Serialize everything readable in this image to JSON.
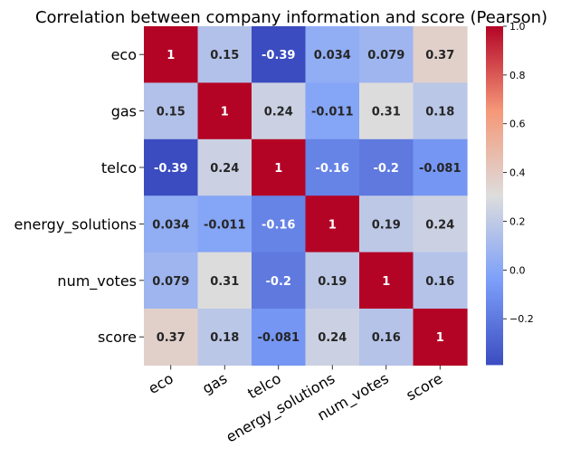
{
  "chart_data": {
    "type": "heatmap",
    "title": "Correlation between company information and score (Pearson)",
    "row_labels": [
      "eco",
      "gas",
      "telco",
      "energy_solutions",
      "num_votes",
      "score"
    ],
    "col_labels": [
      "eco",
      "gas",
      "telco",
      "energy_solutions",
      "num_votes",
      "score"
    ],
    "values": [
      [
        1,
        0.15,
        -0.39,
        0.034,
        0.079,
        0.37
      ],
      [
        0.15,
        1,
        0.24,
        -0.011,
        0.31,
        0.18
      ],
      [
        -0.39,
        0.24,
        1,
        -0.16,
        -0.2,
        -0.081
      ],
      [
        0.034,
        -0.011,
        -0.16,
        1,
        0.19,
        0.24
      ],
      [
        0.079,
        0.31,
        -0.2,
        0.19,
        1,
        0.16
      ],
      [
        0.37,
        0.18,
        -0.081,
        0.24,
        0.16,
        1
      ]
    ],
    "cell_labels": [
      [
        "1",
        "0.15",
        "-0.39",
        "0.034",
        "0.079",
        "0.37"
      ],
      [
        "0.15",
        "1",
        "0.24",
        "-0.011",
        "0.31",
        "0.18"
      ],
      [
        "-0.39",
        "0.24",
        "1",
        "-0.16",
        "-0.2",
        "-0.081"
      ],
      [
        "0.034",
        "-0.011",
        "-0.16",
        "1",
        "0.19",
        "0.24"
      ],
      [
        "0.079",
        "0.31",
        "-0.2",
        "0.19",
        "1",
        "0.16"
      ],
      [
        "0.37",
        "0.18",
        "-0.081",
        "0.24",
        "0.16",
        "1"
      ]
    ],
    "colormap": "coolwarm",
    "color_range": [
      -0.39,
      1
    ],
    "colorbar_ticks": [
      1.0,
      0.8,
      0.6,
      0.4,
      0.2,
      0.0,
      -0.2
    ],
    "colorbar_tick_labels": [
      "1.0",
      "0.8",
      "0.6",
      "0.4",
      "0.2",
      "0.0",
      "−0.2"
    ],
    "colorbar_position": "right"
  }
}
